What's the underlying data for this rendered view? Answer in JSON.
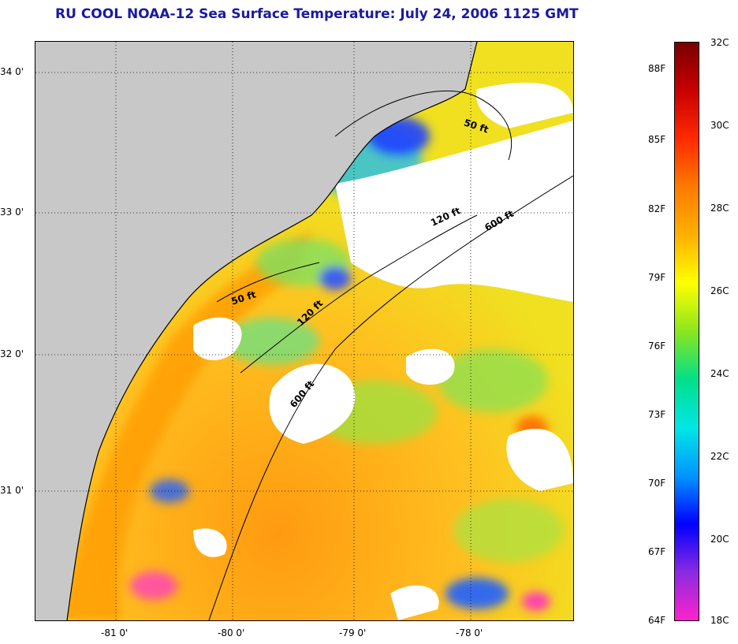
{
  "title": "RU COOL  NOAA-12  Sea Surface Temperature:  July 24, 2006 1125 GMT",
  "map": {
    "lon_labels": [
      "-81 0'",
      "-80 0'",
      "-79 0'",
      "-78 0'"
    ],
    "lat_labels": [
      "34 0'",
      "33 0'",
      "32 0'",
      "31 0'"
    ],
    "isobaths": [
      {
        "label": "50 ft",
        "id": "50a"
      },
      {
        "label": "50 ft",
        "id": "50b"
      },
      {
        "label": "120 ft",
        "id": "120a"
      },
      {
        "label": "120 ft",
        "id": "120b"
      },
      {
        "label": "600 ft",
        "id": "600a"
      },
      {
        "label": "600 ft",
        "id": "600b"
      }
    ],
    "colors": {
      "land": "#c8c8c8",
      "cloud_mask": "#ffffff",
      "grid": "#000000"
    }
  },
  "colorbar": {
    "fahrenheit_labels": [
      "88F",
      "85F",
      "82F",
      "79F",
      "76F",
      "73F",
      "70F",
      "67F",
      "64F"
    ],
    "celsius_labels": [
      "32C",
      "30C",
      "28C",
      "26C",
      "24C",
      "22C",
      "20C",
      "18C"
    ],
    "range_c": [
      18,
      32
    ],
    "stops": [
      "#ff22cc",
      "#8a2be2",
      "#0000ff",
      "#0096ff",
      "#00e6e6",
      "#00e08a",
      "#8ae61e",
      "#ffff00",
      "#ffb000",
      "#ff7a00",
      "#ff2a00",
      "#c80000",
      "#7a0000"
    ]
  }
}
